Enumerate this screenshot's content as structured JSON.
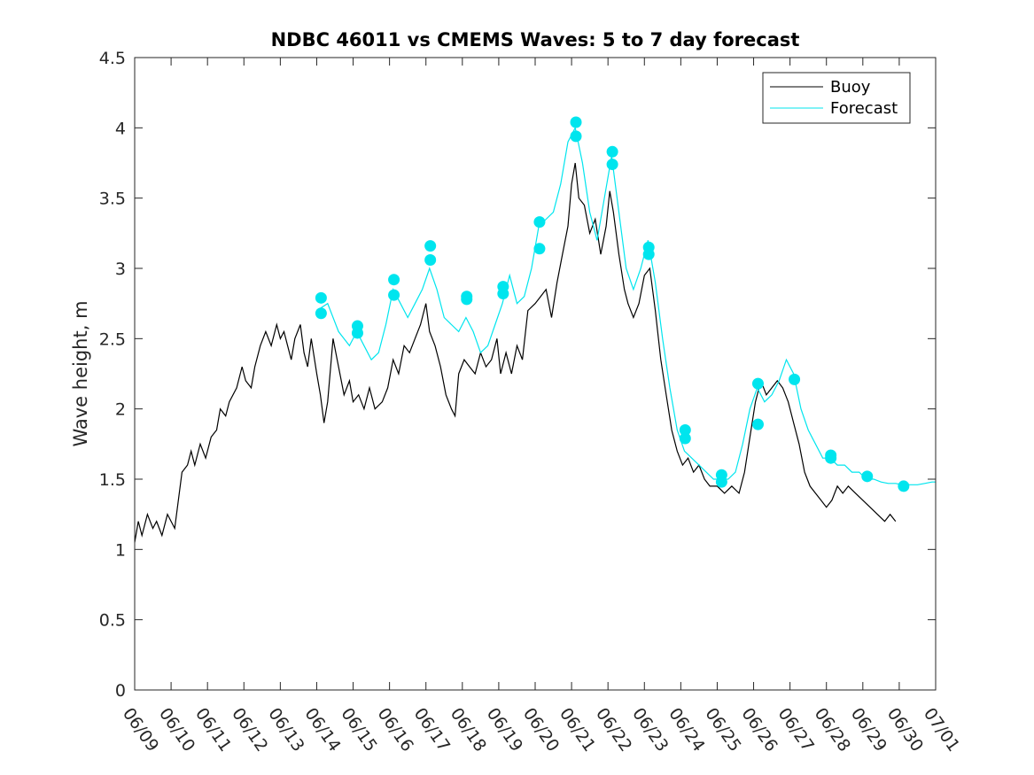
{
  "chart_data": {
    "type": "line",
    "title": "NDBC 46011 vs CMEMS Waves: 5 to 7 day forecast",
    "xlabel": "",
    "ylabel": "Wave height, m",
    "x_ticks": [
      "06/09",
      "06/10",
      "06/11",
      "06/12",
      "06/13",
      "06/14",
      "06/15",
      "06/16",
      "06/17",
      "06/18",
      "06/19",
      "06/20",
      "06/21",
      "06/22",
      "06/23",
      "06/24",
      "06/25",
      "06/26",
      "06/27",
      "06/28",
      "06/29",
      "06/30",
      "07/01"
    ],
    "y_ticks": [
      "0",
      "0.5",
      "1",
      "1.5",
      "2",
      "2.5",
      "3",
      "3.5",
      "4",
      "4.5"
    ],
    "xlim": [
      0,
      22
    ],
    "ylim": [
      0,
      4.5
    ],
    "grid": false,
    "legend": {
      "location": "top-right",
      "entries": [
        "Buoy",
        "Forecast"
      ]
    },
    "colors": {
      "buoy": "#000000",
      "forecast": "#00e5ee"
    },
    "series": [
      {
        "name": "Buoy",
        "x_unit": "days since 06/09",
        "points": [
          [
            0.0,
            1.05
          ],
          [
            0.1,
            1.2
          ],
          [
            0.2,
            1.1
          ],
          [
            0.35,
            1.25
          ],
          [
            0.5,
            1.15
          ],
          [
            0.6,
            1.2
          ],
          [
            0.75,
            1.1
          ],
          [
            0.9,
            1.25
          ],
          [
            1.0,
            1.2
          ],
          [
            1.1,
            1.15
          ],
          [
            1.2,
            1.35
          ],
          [
            1.3,
            1.55
          ],
          [
            1.45,
            1.6
          ],
          [
            1.55,
            1.7
          ],
          [
            1.65,
            1.6
          ],
          [
            1.8,
            1.75
          ],
          [
            1.95,
            1.65
          ],
          [
            2.1,
            1.8
          ],
          [
            2.25,
            1.85
          ],
          [
            2.35,
            2.0
          ],
          [
            2.5,
            1.95
          ],
          [
            2.6,
            2.05
          ],
          [
            2.8,
            2.15
          ],
          [
            2.95,
            2.3
          ],
          [
            3.05,
            2.2
          ],
          [
            3.2,
            2.15
          ],
          [
            3.3,
            2.3
          ],
          [
            3.45,
            2.45
          ],
          [
            3.6,
            2.55
          ],
          [
            3.75,
            2.45
          ],
          [
            3.9,
            2.6
          ],
          [
            4.0,
            2.5
          ],
          [
            4.1,
            2.55
          ],
          [
            4.2,
            2.45
          ],
          [
            4.3,
            2.35
          ],
          [
            4.4,
            2.5
          ],
          [
            4.55,
            2.6
          ],
          [
            4.65,
            2.4
          ],
          [
            4.75,
            2.3
          ],
          [
            4.85,
            2.5
          ],
          [
            5.0,
            2.25
          ],
          [
            5.1,
            2.1
          ],
          [
            5.2,
            1.9
          ],
          [
            5.3,
            2.05
          ],
          [
            5.45,
            2.5
          ],
          [
            5.6,
            2.3
          ],
          [
            5.75,
            2.1
          ],
          [
            5.9,
            2.2
          ],
          [
            6.0,
            2.05
          ],
          [
            6.15,
            2.1
          ],
          [
            6.3,
            2.0
          ],
          [
            6.45,
            2.15
          ],
          [
            6.6,
            2.0
          ],
          [
            6.8,
            2.05
          ],
          [
            6.95,
            2.15
          ],
          [
            7.1,
            2.35
          ],
          [
            7.25,
            2.25
          ],
          [
            7.4,
            2.45
          ],
          [
            7.55,
            2.4
          ],
          [
            7.7,
            2.5
          ],
          [
            7.85,
            2.6
          ],
          [
            8.0,
            2.75
          ],
          [
            8.1,
            2.55
          ],
          [
            8.25,
            2.45
          ],
          [
            8.4,
            2.3
          ],
          [
            8.55,
            2.1
          ],
          [
            8.7,
            2.0
          ],
          [
            8.8,
            1.95
          ],
          [
            8.9,
            2.25
          ],
          [
            9.05,
            2.35
          ],
          [
            9.2,
            2.3
          ],
          [
            9.35,
            2.25
          ],
          [
            9.5,
            2.4
          ],
          [
            9.65,
            2.3
          ],
          [
            9.8,
            2.35
          ],
          [
            9.95,
            2.5
          ],
          [
            10.05,
            2.25
          ],
          [
            10.2,
            2.4
          ],
          [
            10.35,
            2.25
          ],
          [
            10.5,
            2.45
          ],
          [
            10.65,
            2.35
          ],
          [
            10.8,
            2.7
          ],
          [
            11.0,
            2.75
          ],
          [
            11.15,
            2.8
          ],
          [
            11.3,
            2.85
          ],
          [
            11.45,
            2.65
          ],
          [
            11.6,
            2.9
          ],
          [
            11.75,
            3.1
          ],
          [
            11.9,
            3.3
          ],
          [
            12.0,
            3.6
          ],
          [
            12.1,
            3.75
          ],
          [
            12.2,
            3.5
          ],
          [
            12.35,
            3.45
          ],
          [
            12.5,
            3.25
          ],
          [
            12.65,
            3.35
          ],
          [
            12.8,
            3.1
          ],
          [
            12.95,
            3.3
          ],
          [
            13.05,
            3.55
          ],
          [
            13.15,
            3.4
          ],
          [
            13.3,
            3.1
          ],
          [
            13.45,
            2.85
          ],
          [
            13.55,
            2.75
          ],
          [
            13.7,
            2.65
          ],
          [
            13.85,
            2.75
          ],
          [
            14.0,
            2.95
          ],
          [
            14.15,
            3.0
          ],
          [
            14.3,
            2.7
          ],
          [
            14.45,
            2.35
          ],
          [
            14.6,
            2.1
          ],
          [
            14.75,
            1.85
          ],
          [
            14.9,
            1.7
          ],
          [
            15.05,
            1.6
          ],
          [
            15.2,
            1.65
          ],
          [
            15.35,
            1.55
          ],
          [
            15.5,
            1.6
          ],
          [
            15.65,
            1.5
          ],
          [
            15.8,
            1.45
          ],
          [
            16.0,
            1.45
          ],
          [
            16.2,
            1.4
          ],
          [
            16.4,
            1.45
          ],
          [
            16.6,
            1.4
          ],
          [
            16.75,
            1.55
          ],
          [
            16.9,
            1.8
          ],
          [
            17.05,
            2.05
          ],
          [
            17.2,
            2.2
          ],
          [
            17.35,
            2.1
          ],
          [
            17.5,
            2.15
          ],
          [
            17.65,
            2.2
          ],
          [
            17.8,
            2.15
          ],
          [
            17.95,
            2.05
          ],
          [
            18.1,
            1.9
          ],
          [
            18.25,
            1.75
          ],
          [
            18.4,
            1.55
          ],
          [
            18.55,
            1.45
          ],
          [
            18.7,
            1.4
          ],
          [
            18.85,
            1.35
          ],
          [
            19.0,
            1.3
          ],
          [
            19.15,
            1.35
          ],
          [
            19.3,
            1.45
          ],
          [
            19.45,
            1.4
          ],
          [
            19.6,
            1.45
          ],
          [
            19.8,
            1.4
          ],
          [
            20.0,
            1.35
          ],
          [
            20.2,
            1.3
          ],
          [
            20.4,
            1.25
          ],
          [
            20.6,
            1.2
          ],
          [
            20.75,
            1.25
          ],
          [
            20.9,
            1.2
          ]
        ]
      },
      {
        "name": "Forecast",
        "x_unit": "days since 06/09",
        "points": [
          [
            5.0,
            2.7
          ],
          [
            5.3,
            2.75
          ],
          [
            5.6,
            2.55
          ],
          [
            5.9,
            2.45
          ],
          [
            6.1,
            2.55
          ],
          [
            6.3,
            2.45
          ],
          [
            6.5,
            2.35
          ],
          [
            6.7,
            2.4
          ],
          [
            6.9,
            2.6
          ],
          [
            7.1,
            2.85
          ],
          [
            7.3,
            2.75
          ],
          [
            7.5,
            2.65
          ],
          [
            7.7,
            2.75
          ],
          [
            7.9,
            2.85
          ],
          [
            8.1,
            3.0
          ],
          [
            8.3,
            2.85
          ],
          [
            8.5,
            2.65
          ],
          [
            8.7,
            2.6
          ],
          [
            8.9,
            2.55
          ],
          [
            9.1,
            2.65
          ],
          [
            9.3,
            2.55
          ],
          [
            9.5,
            2.4
          ],
          [
            9.7,
            2.45
          ],
          [
            9.9,
            2.6
          ],
          [
            10.1,
            2.75
          ],
          [
            10.3,
            2.95
          ],
          [
            10.5,
            2.75
          ],
          [
            10.7,
            2.8
          ],
          [
            10.9,
            3.0
          ],
          [
            11.1,
            3.3
          ],
          [
            11.3,
            3.35
          ],
          [
            11.5,
            3.4
          ],
          [
            11.7,
            3.6
          ],
          [
            11.9,
            3.9
          ],
          [
            12.1,
            4.0
          ],
          [
            12.3,
            3.75
          ],
          [
            12.5,
            3.4
          ],
          [
            12.7,
            3.2
          ],
          [
            12.9,
            3.5
          ],
          [
            13.1,
            3.8
          ],
          [
            13.3,
            3.4
          ],
          [
            13.5,
            3.0
          ],
          [
            13.7,
            2.85
          ],
          [
            13.9,
            3.0
          ],
          [
            14.1,
            3.2
          ],
          [
            14.3,
            2.9
          ],
          [
            14.5,
            2.5
          ],
          [
            14.7,
            2.15
          ],
          [
            14.9,
            1.85
          ],
          [
            15.1,
            1.7
          ],
          [
            15.3,
            1.65
          ],
          [
            15.5,
            1.6
          ],
          [
            15.7,
            1.55
          ],
          [
            15.9,
            1.5
          ],
          [
            16.1,
            1.5
          ],
          [
            16.3,
            1.5
          ],
          [
            16.5,
            1.55
          ],
          [
            16.7,
            1.75
          ],
          [
            16.9,
            2.0
          ],
          [
            17.1,
            2.15
          ],
          [
            17.3,
            2.05
          ],
          [
            17.5,
            2.1
          ],
          [
            17.7,
            2.2
          ],
          [
            17.9,
            2.35
          ],
          [
            18.1,
            2.25
          ],
          [
            18.3,
            2.0
          ],
          [
            18.5,
            1.85
          ],
          [
            18.7,
            1.75
          ],
          [
            18.9,
            1.65
          ],
          [
            19.1,
            1.65
          ],
          [
            19.3,
            1.6
          ],
          [
            19.5,
            1.6
          ],
          [
            19.7,
            1.55
          ],
          [
            19.9,
            1.55
          ],
          [
            20.1,
            1.5
          ],
          [
            20.3,
            1.5
          ],
          [
            20.5,
            1.48
          ],
          [
            20.7,
            1.47
          ],
          [
            20.9,
            1.47
          ],
          [
            21.1,
            1.46
          ],
          [
            21.3,
            1.46
          ],
          [
            21.5,
            1.46
          ],
          [
            21.7,
            1.47
          ],
          [
            21.9,
            1.48
          ],
          [
            22.0,
            1.48
          ]
        ]
      }
    ],
    "forecast_markers": [
      [
        5.12,
        2.79
      ],
      [
        5.12,
        2.68
      ],
      [
        6.12,
        2.59
      ],
      [
        6.12,
        2.54
      ],
      [
        7.12,
        2.92
      ],
      [
        7.12,
        2.81
      ],
      [
        8.12,
        3.16
      ],
      [
        8.12,
        3.06
      ],
      [
        9.12,
        2.8
      ],
      [
        9.12,
        2.78
      ],
      [
        10.12,
        2.87
      ],
      [
        10.12,
        2.82
      ],
      [
        11.12,
        3.33
      ],
      [
        11.12,
        3.14
      ],
      [
        12.12,
        4.04
      ],
      [
        12.12,
        3.94
      ],
      [
        13.12,
        3.83
      ],
      [
        13.12,
        3.74
      ],
      [
        14.12,
        3.15
      ],
      [
        14.12,
        3.1
      ],
      [
        15.12,
        1.85
      ],
      [
        15.12,
        1.79
      ],
      [
        16.12,
        1.53
      ],
      [
        16.12,
        1.48
      ],
      [
        17.12,
        2.18
      ],
      [
        17.12,
        1.89
      ],
      [
        18.12,
        2.21
      ],
      [
        19.12,
        1.67
      ],
      [
        19.12,
        1.65
      ],
      [
        20.12,
        1.52
      ],
      [
        21.12,
        1.45
      ]
    ]
  }
}
